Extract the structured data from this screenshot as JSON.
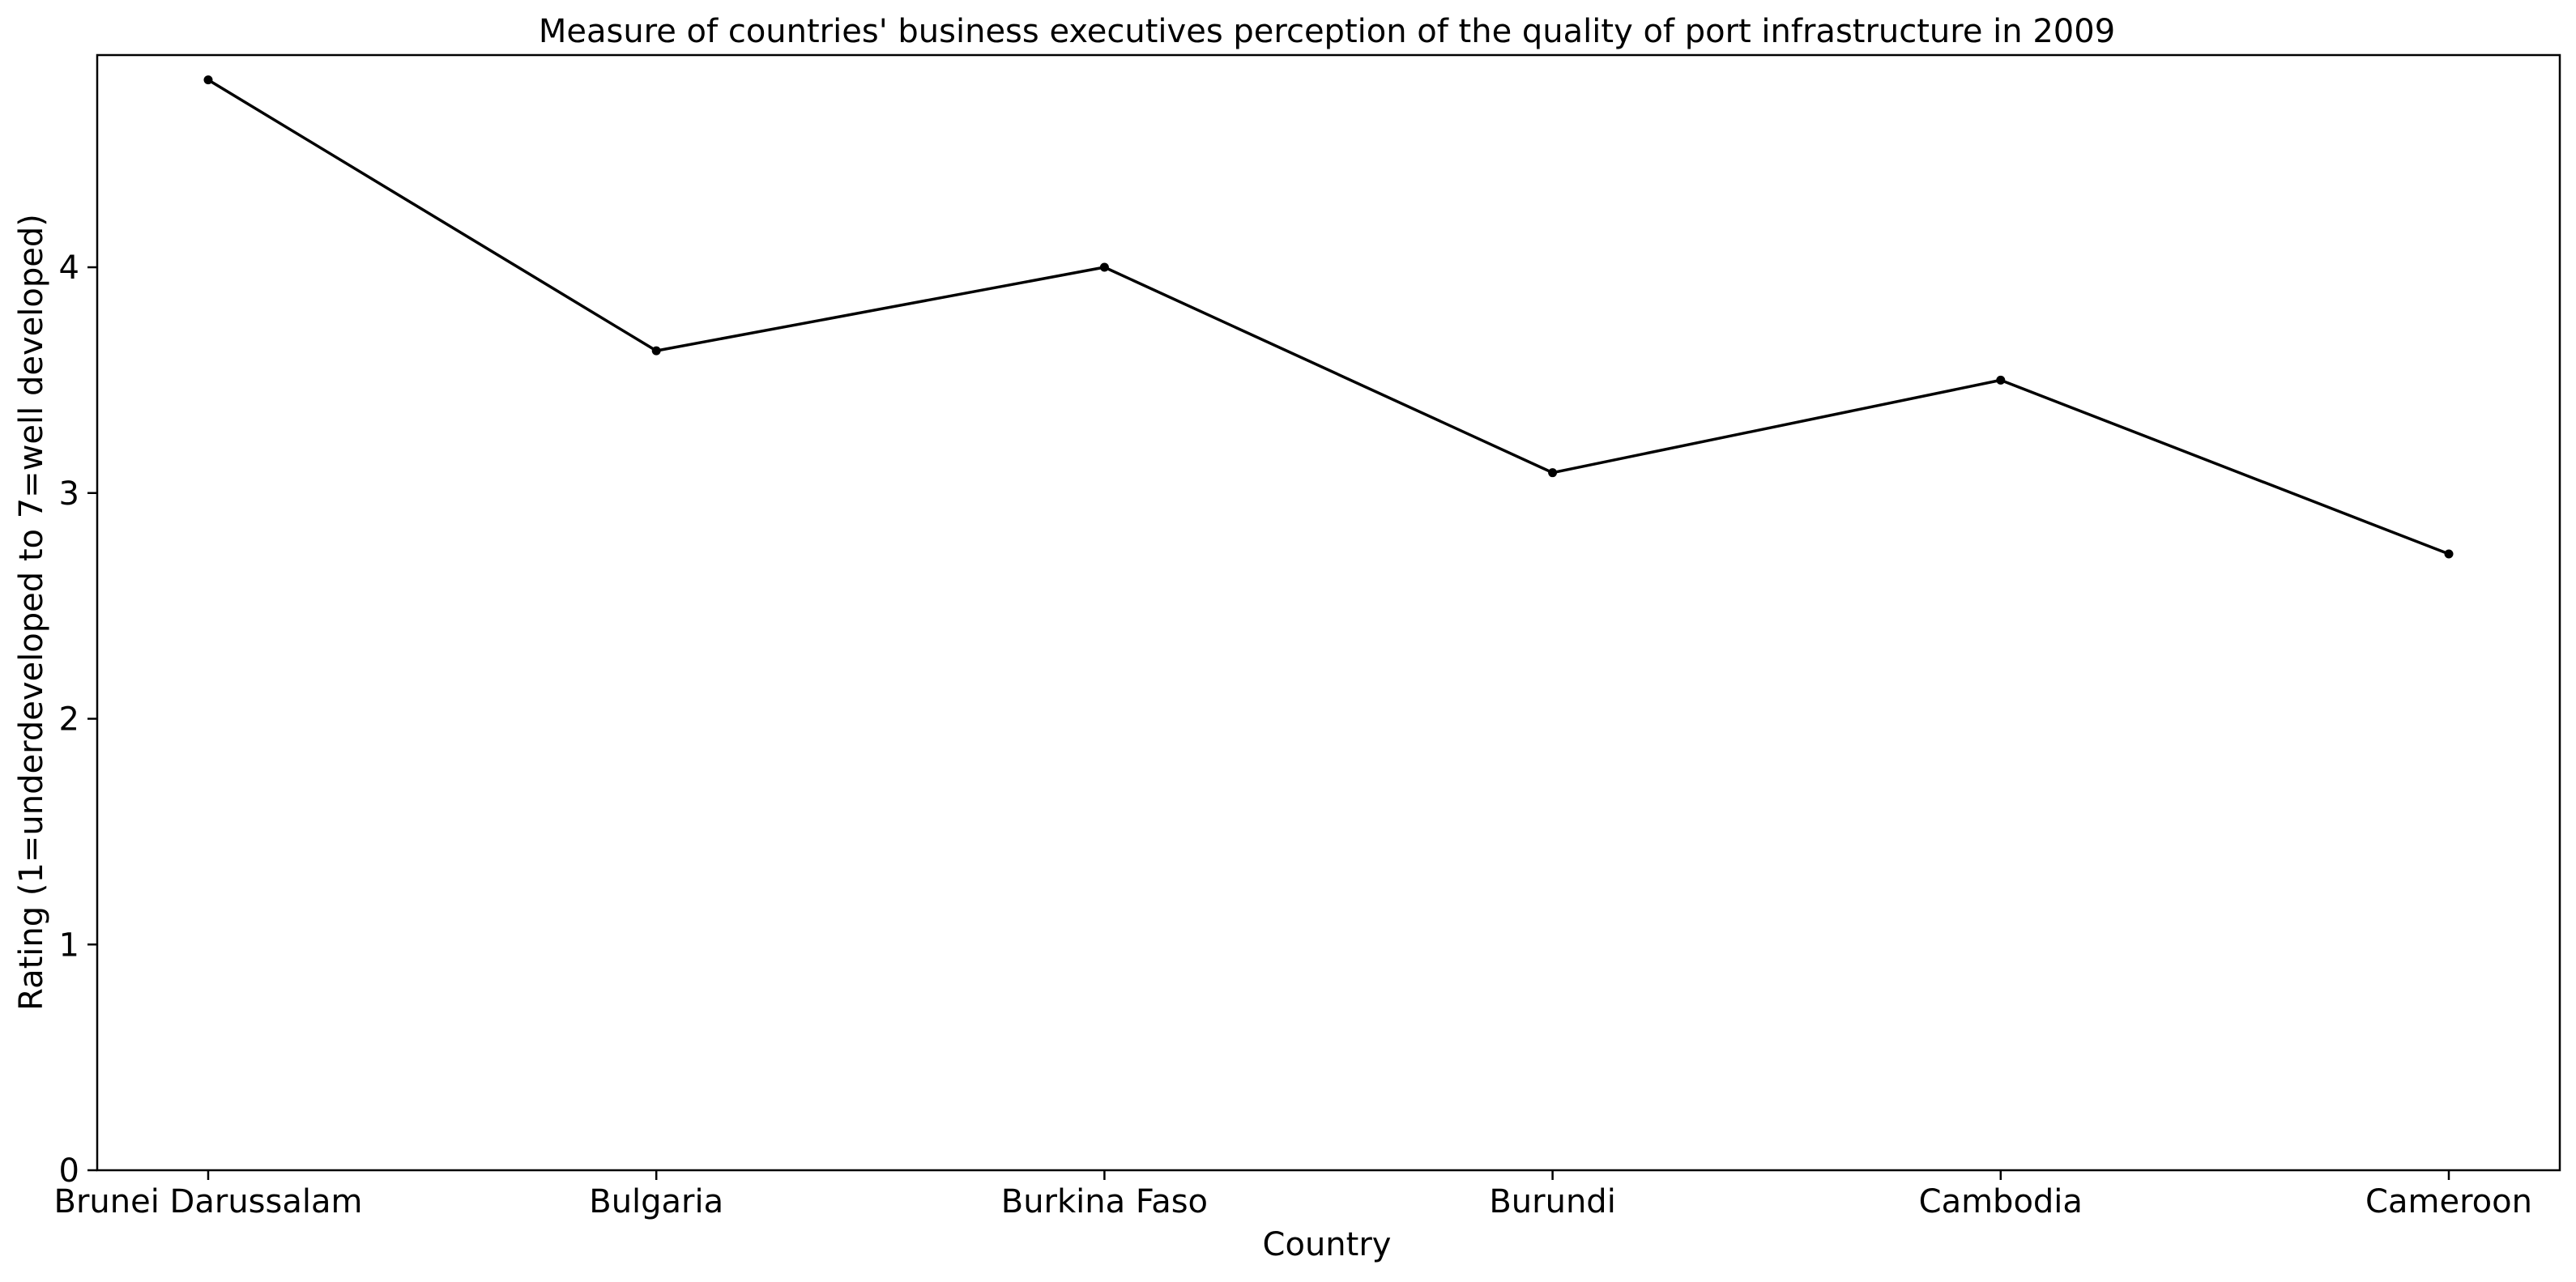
{
  "chart_data": {
    "type": "line",
    "title": "Measure of countries' business executives perception of the quality of port infrastructure in 2009",
    "xlabel": "Country",
    "ylabel": "Rating (1=underdeveloped to 7=well developed)",
    "categories": [
      "Brunei Darussalam",
      "Bulgaria",
      "Burkina Faso",
      "Burundi",
      "Cambodia",
      "Cameroon"
    ],
    "series": [
      {
        "values": [
          4.83,
          3.63,
          4.0,
          3.09,
          3.5,
          2.73
        ],
        "color": "#000000",
        "marker": "dot"
      }
    ],
    "ylim": [
      0,
      4.94
    ],
    "yticks": [
      0,
      1,
      2,
      3,
      4
    ],
    "grid": false,
    "legend": "none"
  }
}
